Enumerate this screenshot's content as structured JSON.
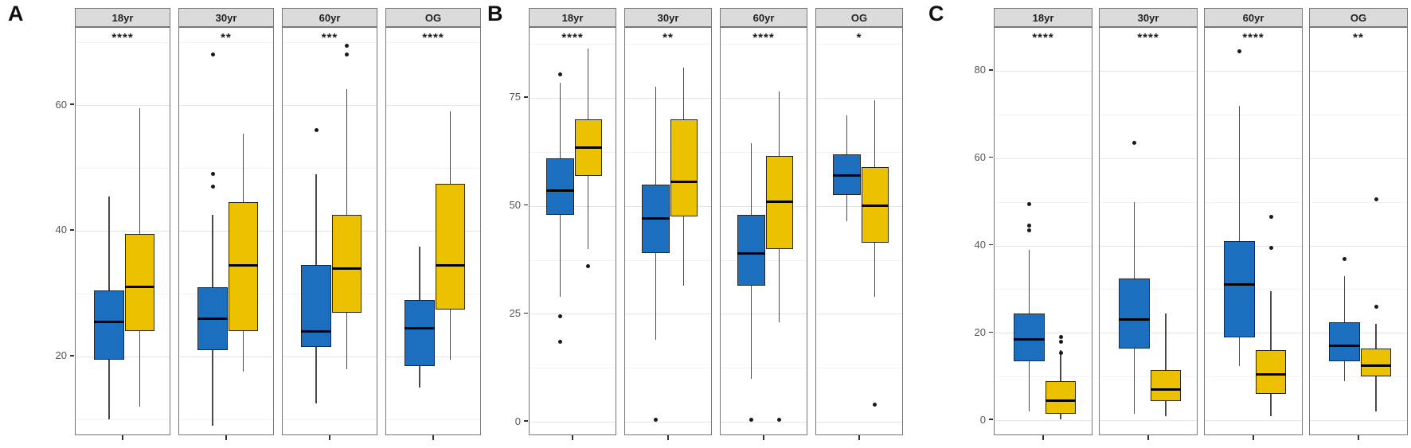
{
  "colors": {
    "blue": "#1c6fbe",
    "yellow": "#ebc100",
    "strip_bg": "#dbdbdb",
    "panel_border": "#777777",
    "grid_major": "#e4e4e4",
    "grid_minor": "#f2f2f2",
    "median": "#000000",
    "outlier": "#1a1a1a"
  },
  "facet_labels": [
    "18yr",
    "30yr",
    "60yr",
    "OG"
  ],
  "series_names": [
    "blue",
    "yellow"
  ],
  "chart_data": [
    {
      "panel": "A",
      "type": "boxplot-faceted",
      "ylim": [
        7.3,
        72.3
      ],
      "yticks": [
        20,
        40,
        60
      ],
      "minor_gridlines": [
        10,
        30,
        50,
        70
      ],
      "facets": [
        {
          "label": "18yr",
          "significance": "****",
          "series": [
            {
              "name": "blue",
              "whisker_low": 10,
              "q1": 19.5,
              "median": 25.5,
              "q3": 30.5,
              "whisker_high": 45.5,
              "outliers": []
            },
            {
              "name": "yellow",
              "whisker_low": 12,
              "q1": 24,
              "median": 31,
              "q3": 39.5,
              "whisker_high": 59.5,
              "outliers": []
            }
          ]
        },
        {
          "label": "30yr",
          "significance": "**",
          "series": [
            {
              "name": "blue",
              "whisker_low": 9,
              "q1": 21,
              "median": 26,
              "q3": 31,
              "whisker_high": 42.5,
              "outliers": [
                68,
                49,
                47
              ]
            },
            {
              "name": "yellow",
              "whisker_low": 17.5,
              "q1": 24,
              "median": 34.5,
              "q3": 44.5,
              "whisker_high": 55.5,
              "outliers": []
            }
          ]
        },
        {
          "label": "60yr",
          "significance": "***",
          "series": [
            {
              "name": "blue",
              "whisker_low": 12.5,
              "q1": 21.5,
              "median": 24,
              "q3": 34.5,
              "whisker_high": 49,
              "outliers": [
                56
              ]
            },
            {
              "name": "yellow",
              "whisker_low": 18,
              "q1": 27,
              "median": 34,
              "q3": 42.5,
              "whisker_high": 62.5,
              "outliers": [
                69.5,
                68
              ]
            }
          ]
        },
        {
          "label": "OG",
          "significance": "****",
          "series": [
            {
              "name": "blue",
              "whisker_low": 15,
              "q1": 18.5,
              "median": 24.5,
              "q3": 29,
              "whisker_high": 37.5,
              "outliers": []
            },
            {
              "name": "yellow",
              "whisker_low": 19.5,
              "q1": 27.5,
              "median": 34.5,
              "q3": 47.5,
              "whisker_high": 59,
              "outliers": []
            }
          ]
        }
      ]
    },
    {
      "panel": "B",
      "type": "boxplot-faceted",
      "ylim": [
        -3.3,
        91.2
      ],
      "yticks": [
        0,
        25,
        50,
        75
      ],
      "minor_gridlines": [
        12.5,
        37.5,
        62.5,
        87.5
      ],
      "facets": [
        {
          "label": "18yr",
          "significance": "****",
          "series": [
            {
              "name": "blue",
              "whisker_low": 29,
              "q1": 48,
              "median": 53.5,
              "q3": 61,
              "whisker_high": 78.5,
              "outliers": [
                80.5,
                24.5,
                18.5
              ]
            },
            {
              "name": "yellow",
              "whisker_low": 40,
              "q1": 57,
              "median": 63.5,
              "q3": 70,
              "whisker_high": 86.5,
              "outliers": [
                36
              ]
            }
          ]
        },
        {
          "label": "30yr",
          "significance": "**",
          "series": [
            {
              "name": "blue",
              "whisker_low": 19,
              "q1": 39,
              "median": 47,
              "q3": 55,
              "whisker_high": 77.5,
              "outliers": [
                0.5
              ]
            },
            {
              "name": "yellow",
              "whisker_low": 31.5,
              "q1": 47.5,
              "median": 55.5,
              "q3": 70,
              "whisker_high": 82,
              "outliers": []
            }
          ]
        },
        {
          "label": "60yr",
          "significance": "****",
          "series": [
            {
              "name": "blue",
              "whisker_low": 10,
              "q1": 31.5,
              "median": 39,
              "q3": 48,
              "whisker_high": 64.5,
              "outliers": [
                0.5
              ]
            },
            {
              "name": "yellow",
              "whisker_low": 23,
              "q1": 40,
              "median": 51,
              "q3": 61.5,
              "whisker_high": 76.5,
              "outliers": [
                0.5
              ]
            }
          ]
        },
        {
          "label": "OG",
          "significance": "*",
          "series": [
            {
              "name": "blue",
              "whisker_low": 46.5,
              "q1": 52.5,
              "median": 57,
              "q3": 62,
              "whisker_high": 71,
              "outliers": []
            },
            {
              "name": "yellow",
              "whisker_low": 29,
              "q1": 41.5,
              "median": 50,
              "q3": 59,
              "whisker_high": 74.5,
              "outliers": [
                4
              ]
            }
          ]
        }
      ]
    },
    {
      "panel": "C",
      "type": "boxplot-faceted",
      "ylim": [
        -3.6,
        89.8
      ],
      "yticks": [
        0,
        20,
        40,
        60,
        80
      ],
      "minor_gridlines": [
        10,
        30,
        50,
        70
      ],
      "facets": [
        {
          "label": "18yr",
          "significance": "****",
          "series": [
            {
              "name": "blue",
              "whisker_low": 2,
              "q1": 13.5,
              "median": 18.5,
              "q3": 24.5,
              "whisker_high": 39,
              "outliers": [
                49.5,
                44.5,
                43.5
              ]
            },
            {
              "name": "yellow",
              "whisker_low": 0.3,
              "q1": 1.5,
              "median": 4.5,
              "q3": 9,
              "whisker_high": 16,
              "outliers": [
                19,
                18,
                15.5
              ]
            }
          ]
        },
        {
          "label": "30yr",
          "significance": "****",
          "series": [
            {
              "name": "blue",
              "whisker_low": 1.5,
              "q1": 16.5,
              "median": 23,
              "q3": 32.5,
              "whisker_high": 50,
              "outliers": [
                63.5
              ]
            },
            {
              "name": "yellow",
              "whisker_low": 1,
              "q1": 4.5,
              "median": 7,
              "q3": 11.5,
              "whisker_high": 24.5,
              "outliers": []
            }
          ]
        },
        {
          "label": "60yr",
          "significance": "****",
          "series": [
            {
              "name": "blue",
              "whisker_low": 12.5,
              "q1": 19,
              "median": 31,
              "q3": 41,
              "whisker_high": 72,
              "outliers": [
                84.5
              ]
            },
            {
              "name": "yellow",
              "whisker_low": 1,
              "q1": 6,
              "median": 10.5,
              "q3": 16,
              "whisker_high": 29.5,
              "outliers": [
                46.5,
                39.5
              ]
            }
          ]
        },
        {
          "label": "OG",
          "significance": "**",
          "series": [
            {
              "name": "blue",
              "whisker_low": 9,
              "q1": 13.5,
              "median": 17,
              "q3": 22.5,
              "whisker_high": 33,
              "outliers": [
                37
              ]
            },
            {
              "name": "yellow",
              "whisker_low": 2,
              "q1": 10,
              "median": 12.5,
              "q3": 16.5,
              "whisker_high": 22,
              "outliers": [
                50.5,
                26
              ]
            }
          ]
        }
      ]
    }
  ]
}
